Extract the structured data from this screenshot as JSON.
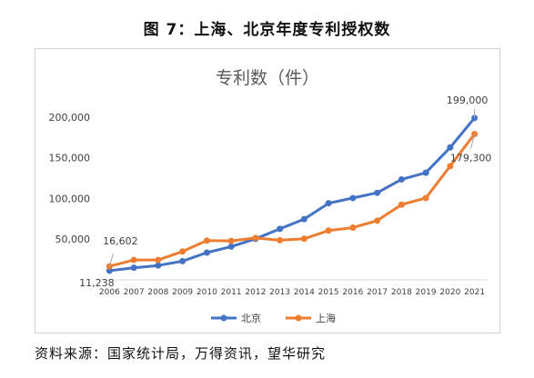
{
  "figure": {
    "title": "图 7：上海、北京年度专利授权数",
    "source": "资料来源：国家统计局，万得资讯，望华研究"
  },
  "chart_data": {
    "type": "line",
    "title": "专利数（件）",
    "x": [
      "2006",
      "2007",
      "2008",
      "2009",
      "2010",
      "2011",
      "2012",
      "2013",
      "2014",
      "2015",
      "2016",
      "2017",
      "2018",
      "2019",
      "2020",
      "2021"
    ],
    "ylim": [
      0,
      210000
    ],
    "yticks": [
      50000,
      100000,
      150000,
      200000
    ],
    "ytick_labels": [
      "50,000",
      "100,000",
      "150,000",
      "200,000"
    ],
    "grid": false,
    "legend_position": "bottom",
    "series": [
      {
        "name": "北京",
        "color": "#4472C4",
        "values": [
          11238,
          14900,
          17700,
          23000,
          33500,
          40900,
          50500,
          62700,
          74700,
          94200,
          100600,
          107000,
          123500,
          131700,
          162800,
          199000
        ]
      },
      {
        "name": "上海",
        "color": "#ED7D31",
        "values": [
          16602,
          24500,
          24500,
          34900,
          48200,
          47900,
          51500,
          48700,
          50500,
          60600,
          64200,
          72800,
          92500,
          100600,
          139800,
          179300
        ]
      }
    ],
    "annotations": [
      {
        "series": 0,
        "index": 15,
        "text": "199,000"
      },
      {
        "series": 1,
        "index": 15,
        "text": "179,300"
      },
      {
        "series": 1,
        "index": 0,
        "text": "16,602"
      },
      {
        "series": 0,
        "index": 0,
        "text": "11,238"
      }
    ]
  }
}
